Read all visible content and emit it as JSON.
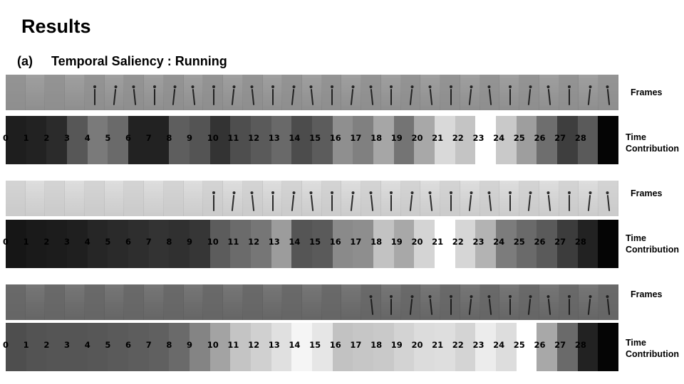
{
  "title": "Results",
  "subtitle": {
    "tag": "(a)",
    "text": "Temporal Saliency : Running"
  },
  "labels": {
    "frames": "Frames",
    "time": "Time",
    "contribution": "Contribution"
  },
  "groups": [
    {
      "frame_bg": "#9a9a9a",
      "figure_color": "#222222",
      "figure_start": 4,
      "frame_count": 31,
      "cells": [
        {
          "label": "0",
          "color": "#1e1e1e"
        },
        {
          "label": "1",
          "color": "#222222"
        },
        {
          "label": "2",
          "color": "#2b2b2b"
        },
        {
          "label": "3",
          "color": "#575757"
        },
        {
          "label": "4",
          "color": "#7a7a7a"
        },
        {
          "label": "5",
          "color": "#6a6a6a"
        },
        {
          "label": "6",
          "color": "#222222"
        },
        {
          "label": "7",
          "color": "#222222"
        },
        {
          "label": "8",
          "color": "#5e5e5e"
        },
        {
          "label": "9",
          "color": "#545454"
        },
        {
          "label": "10",
          "color": "#333333"
        },
        {
          "label": "11",
          "color": "#4e4e4e"
        },
        {
          "label": "12",
          "color": "#5a5a5a"
        },
        {
          "label": "13",
          "color": "#696969"
        },
        {
          "label": "14",
          "color": "#4c4c4c"
        },
        {
          "label": "15",
          "color": "#5c5c5c"
        },
        {
          "label": "16",
          "color": "#8f8f8f"
        },
        {
          "label": "17",
          "color": "#808080"
        },
        {
          "label": "18",
          "color": "#a6a6a6"
        },
        {
          "label": "19",
          "color": "#747474"
        },
        {
          "label": "20",
          "color": "#a8a8a8"
        },
        {
          "label": "21",
          "color": "#d9d9d9"
        },
        {
          "label": "22",
          "color": "#c4c4c4"
        },
        {
          "label": "23",
          "color": "#ffffff"
        },
        {
          "label": "24",
          "color": "#c9c9c9"
        },
        {
          "label": "25",
          "color": "#9e9e9e"
        },
        {
          "label": "26",
          "color": "#6e6e6e"
        },
        {
          "label": "27",
          "color": "#3e3e3e"
        },
        {
          "label": "28",
          "color": "#5a5a5a"
        },
        {
          "label": "",
          "color": "#050505"
        }
      ]
    },
    {
      "frame_bg": "#dcdcdc",
      "figure_color": "#2a2a2a",
      "figure_start": 10,
      "frame_count": 31,
      "cells": [
        {
          "label": "0",
          "color": "#161616"
        },
        {
          "label": "1",
          "color": "#1a1a1a"
        },
        {
          "label": "2",
          "color": "#1c1c1c"
        },
        {
          "label": "3",
          "color": "#1f1f1f"
        },
        {
          "label": "4",
          "color": "#262626"
        },
        {
          "label": "5",
          "color": "#2a2a2a"
        },
        {
          "label": "6",
          "color": "#2e2e2e"
        },
        {
          "label": "7",
          "color": "#333333"
        },
        {
          "label": "8",
          "color": "#303030"
        },
        {
          "label": "9",
          "color": "#363636"
        },
        {
          "label": "10",
          "color": "#5c5c5c"
        },
        {
          "label": "11",
          "color": "#6b6b6b"
        },
        {
          "label": "12",
          "color": "#767676"
        },
        {
          "label": "13",
          "color": "#9c9c9c"
        },
        {
          "label": "14",
          "color": "#555555"
        },
        {
          "label": "15",
          "color": "#5a5a5a"
        },
        {
          "label": "16",
          "color": "#8a8a8a"
        },
        {
          "label": "17",
          "color": "#8e8e8e"
        },
        {
          "label": "18",
          "color": "#c2c2c2"
        },
        {
          "label": "19",
          "color": "#a8a8a8"
        },
        {
          "label": "20",
          "color": "#d4d4d4"
        },
        {
          "label": "21",
          "color": "#ffffff"
        },
        {
          "label": "22",
          "color": "#d6d6d6"
        },
        {
          "label": "23",
          "color": "#b3b3b3"
        },
        {
          "label": "24",
          "color": "#7c7c7c"
        },
        {
          "label": "25",
          "color": "#6a6a6a"
        },
        {
          "label": "26",
          "color": "#5a5a5a"
        },
        {
          "label": "27",
          "color": "#3c3c3c"
        },
        {
          "label": "28",
          "color": "#222222"
        },
        {
          "label": "",
          "color": "#050505"
        }
      ]
    },
    {
      "frame_bg": "#6e6e6e",
      "figure_color": "#1e1e1e",
      "figure_start": 18,
      "frame_count": 31,
      "cells": [
        {
          "label": "0",
          "color": "#4e4e4e"
        },
        {
          "label": "1",
          "color": "#535353"
        },
        {
          "label": "2",
          "color": "#555555"
        },
        {
          "label": "3",
          "color": "#555555"
        },
        {
          "label": "4",
          "color": "#575757"
        },
        {
          "label": "5",
          "color": "#5a5a5a"
        },
        {
          "label": "6",
          "color": "#5d5d5d"
        },
        {
          "label": "7",
          "color": "#606060"
        },
        {
          "label": "8",
          "color": "#6a6a6a"
        },
        {
          "label": "9",
          "color": "#848484"
        },
        {
          "label": "10",
          "color": "#a3a3a3"
        },
        {
          "label": "11",
          "color": "#c4c4c4"
        },
        {
          "label": "12",
          "color": "#d0d0d0"
        },
        {
          "label": "13",
          "color": "#e0e0e0"
        },
        {
          "label": "14",
          "color": "#f5f5f5"
        },
        {
          "label": "15",
          "color": "#e6e6e6"
        },
        {
          "label": "16",
          "color": "#c2c2c2"
        },
        {
          "label": "17",
          "color": "#c6c6c6"
        },
        {
          "label": "18",
          "color": "#c9c9c9"
        },
        {
          "label": "19",
          "color": "#d3d3d3"
        },
        {
          "label": "20",
          "color": "#dcdcdc"
        },
        {
          "label": "21",
          "color": "#dedede"
        },
        {
          "label": "22",
          "color": "#d4d4d4"
        },
        {
          "label": "23",
          "color": "#ececec"
        },
        {
          "label": "24",
          "color": "#dddddd"
        },
        {
          "label": "25",
          "color": "#ffffff"
        },
        {
          "label": "26",
          "color": "#a8a8a8"
        },
        {
          "label": "27",
          "color": "#6a6a6a"
        },
        {
          "label": "28",
          "color": "#222222"
        },
        {
          "label": "",
          "color": "#050505"
        }
      ]
    }
  ]
}
